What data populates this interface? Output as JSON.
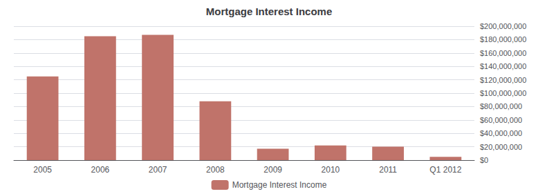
{
  "chart_data": {
    "type": "bar",
    "title": "Mortgage Interest Income",
    "categories": [
      "2005",
      "2006",
      "2007",
      "2008",
      "2009",
      "2010",
      "2011",
      "Q1 2012"
    ],
    "series": [
      {
        "name": "Mortgage Interest Income",
        "color": "#c0736a",
        "values": [
          125000000,
          185000000,
          187000000,
          88000000,
          17000000,
          22000000,
          20000000,
          5000000
        ]
      }
    ],
    "ylim": [
      0,
      200000000
    ],
    "yticks": [
      {
        "value": 0,
        "label": "$0"
      },
      {
        "value": 20000000,
        "label": "$20,000,000"
      },
      {
        "value": 40000000,
        "label": "$40,000,000"
      },
      {
        "value": 60000000,
        "label": "$60,000,000"
      },
      {
        "value": 80000000,
        "label": "$80,000,000"
      },
      {
        "value": 100000000,
        "label": "$100,000,000"
      },
      {
        "value": 120000000,
        "label": "$120,000,000"
      },
      {
        "value": 140000000,
        "label": "$140,000,000"
      },
      {
        "value": 160000000,
        "label": "$160,000,000"
      },
      {
        "value": 180000000,
        "label": "$180,000,000"
      },
      {
        "value": 200000000,
        "label": "$200,000,000"
      }
    ],
    "grid": true,
    "legend": "bottom"
  }
}
